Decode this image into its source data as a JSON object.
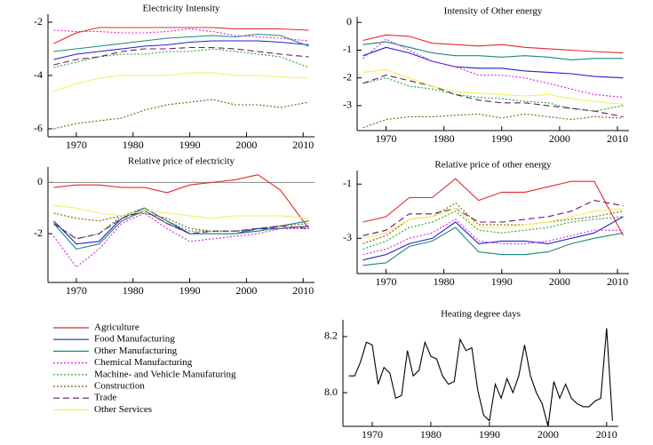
{
  "chart_data": [
    {
      "type": "line",
      "title": "Electricity Intensity",
      "x": [
        1966,
        1970,
        1974,
        1978,
        1982,
        1986,
        1990,
        1994,
        1998,
        2002,
        2006,
        2011
      ],
      "xlim": [
        1965,
        2012
      ],
      "ylim": [
        -6.3,
        -1.7
      ],
      "xticks": [
        1970,
        1980,
        1990,
        2000,
        2010
      ],
      "yticks": [
        -6,
        -4,
        -2
      ],
      "series": [
        {
          "name": "Agriculture",
          "color": "#e8282b",
          "style": "solid",
          "values": [
            -2.8,
            -2.4,
            -2.2,
            -2.2,
            -2.2,
            -2.2,
            -2.2,
            -2.2,
            -2.25,
            -2.25,
            -2.25,
            -2.3
          ]
        },
        {
          "name": "Food Manufacturing",
          "color": "#2323c8",
          "style": "solid",
          "values": [
            -3.4,
            -3.2,
            -3.1,
            -3.0,
            -2.9,
            -2.85,
            -2.75,
            -2.7,
            -2.7,
            -2.7,
            -2.75,
            -2.85
          ]
        },
        {
          "name": "Other Manufacturing",
          "color": "#1a8a7a",
          "style": "solid",
          "values": [
            -3.1,
            -3.0,
            -2.9,
            -2.8,
            -2.7,
            -2.6,
            -2.55,
            -2.5,
            -2.55,
            -2.45,
            -2.5,
            -2.9
          ]
        },
        {
          "name": "Chemical Manufacturing",
          "color": "#e020e0",
          "style": "dotted",
          "values": [
            -2.3,
            -2.35,
            -2.35,
            -2.4,
            -2.4,
            -2.35,
            -2.25,
            -2.35,
            -2.5,
            -2.55,
            -2.6,
            -2.7
          ]
        },
        {
          "name": "Machine- and Vehicle Manufaturing",
          "color": "#22aa22",
          "style": "dotted",
          "values": [
            -3.7,
            -3.5,
            -3.3,
            -3.2,
            -3.2,
            -3.1,
            -3.1,
            -3.0,
            -3.1,
            -3.2,
            -3.3,
            -3.7
          ]
        },
        {
          "name": "Construction",
          "color": "#7a5a10",
          "style": "dotted",
          "values": [
            -6.0,
            -5.8,
            -5.7,
            -5.6,
            -5.3,
            -5.1,
            -5.0,
            -4.9,
            -5.1,
            -5.1,
            -5.2,
            -5.0
          ]
        },
        {
          "name": "Trade",
          "color": "#6a1a6a",
          "style": "dashed",
          "values": [
            -3.6,
            -3.4,
            -3.3,
            -3.1,
            -3.0,
            -3.0,
            -2.95,
            -2.95,
            -3.0,
            -3.1,
            -3.2,
            -3.3
          ]
        },
        {
          "name": "Other Services",
          "color": "#f0f060",
          "style": "solid",
          "values": [
            -4.6,
            -4.3,
            -4.1,
            -4.0,
            -4.0,
            -4.0,
            -3.9,
            -3.9,
            -4.0,
            -4.0,
            -4.05,
            -4.1
          ]
        }
      ]
    },
    {
      "type": "line",
      "title": "Intensity of Other energy",
      "x": [
        1966,
        1970,
        1974,
        1978,
        1982,
        1986,
        1990,
        1994,
        1998,
        2002,
        2006,
        2011
      ],
      "xlim": [
        1965,
        2012
      ],
      "ylim": [
        -3.9,
        0.2
      ],
      "xticks": [
        1970,
        1980,
        1990,
        2000,
        2010
      ],
      "yticks": [
        -3,
        -2,
        -1,
        0
      ],
      "series": [
        {
          "values": [
            -0.65,
            -0.45,
            -0.5,
            -0.75,
            -0.8,
            -0.85,
            -0.8,
            -0.9,
            -0.95,
            -1.0,
            -1.05,
            -1.1
          ]
        },
        {
          "values": [
            -1.2,
            -0.9,
            -1.1,
            -1.4,
            -1.6,
            -1.65,
            -1.65,
            -1.75,
            -1.8,
            -1.85,
            -1.95,
            -2.0
          ]
        },
        {
          "values": [
            -0.8,
            -0.7,
            -0.9,
            -1.1,
            -1.2,
            -1.2,
            -1.25,
            -1.2,
            -1.25,
            -1.35,
            -1.3,
            -1.3
          ]
        },
        {
          "values": [
            -1.3,
            -0.6,
            -1.0,
            -1.4,
            -1.6,
            -1.9,
            -1.9,
            -2.0,
            -2.2,
            -2.4,
            -2.6,
            -2.7
          ]
        },
        {
          "values": [
            -2.2,
            -2.0,
            -2.3,
            -2.4,
            -2.6,
            -2.7,
            -2.75,
            -2.85,
            -2.9,
            -3.1,
            -3.2,
            -3.0
          ]
        },
        {
          "values": [
            -3.8,
            -3.5,
            -3.4,
            -3.4,
            -3.35,
            -3.3,
            -3.45,
            -3.3,
            -3.4,
            -3.5,
            -3.4,
            -3.45
          ]
        },
        {
          "values": [
            -2.2,
            -1.9,
            -2.1,
            -2.3,
            -2.6,
            -2.8,
            -2.9,
            -2.9,
            -3.0,
            -3.1,
            -3.2,
            -3.4
          ]
        },
        {
          "values": [
            -1.8,
            -1.7,
            -2.0,
            -2.3,
            -2.5,
            -2.55,
            -2.6,
            -2.65,
            -2.6,
            -2.75,
            -2.85,
            -2.95
          ]
        }
      ]
    },
    {
      "type": "line",
      "title": "Relative price of electricity",
      "zero_line": true,
      "x": [
        1966,
        1970,
        1974,
        1978,
        1982,
        1986,
        1990,
        1994,
        1998,
        2002,
        2006,
        2011
      ],
      "xlim": [
        1965,
        2012
      ],
      "ylim": [
        -3.9,
        0.6
      ],
      "xticks": [
        1970,
        1980,
        1990,
        2000,
        2010
      ],
      "yticks": [
        -2,
        0
      ],
      "series": [
        {
          "values": [
            -0.2,
            -0.1,
            -0.1,
            -0.2,
            -0.2,
            -0.4,
            -0.1,
            0.0,
            0.1,
            0.3,
            -0.3,
            -1.8
          ]
        },
        {
          "values": [
            -1.5,
            -2.4,
            -2.3,
            -1.4,
            -1.0,
            -1.5,
            -2.0,
            -2.0,
            -2.0,
            -1.8,
            -1.8,
            -1.7
          ]
        },
        {
          "values": [
            -1.6,
            -2.6,
            -2.4,
            -1.5,
            -1.1,
            -1.6,
            -2.0,
            -2.0,
            -2.0,
            -1.9,
            -1.7,
            -1.5
          ]
        },
        {
          "values": [
            -2.1,
            -3.3,
            -2.6,
            -1.6,
            -1.2,
            -1.8,
            -2.3,
            -2.2,
            -2.1,
            -2.0,
            -1.8,
            -1.8
          ]
        },
        {
          "values": [
            -1.6,
            -2.2,
            -2.0,
            -1.3,
            -1.0,
            -1.5,
            -1.9,
            -1.9,
            -1.9,
            -1.9,
            -1.8,
            -1.7
          ]
        },
        {
          "values": [
            -1.2,
            -1.4,
            -1.5,
            -1.3,
            -1.2,
            -1.4,
            -1.8,
            -1.9,
            -1.9,
            -1.8,
            -1.7,
            -1.6
          ]
        },
        {
          "values": [
            -1.6,
            -2.2,
            -2.0,
            -1.4,
            -1.1,
            -1.6,
            -2.0,
            -1.9,
            -1.9,
            -1.8,
            -1.7,
            -1.8
          ]
        },
        {
          "values": [
            -0.9,
            -1.0,
            -1.2,
            -1.3,
            -1.1,
            -1.2,
            -1.3,
            -1.4,
            -1.3,
            -1.3,
            -1.3,
            -1.4
          ]
        }
      ]
    },
    {
      "type": "line",
      "title": "Relative price of other energy",
      "x": [
        1966,
        1970,
        1974,
        1978,
        1982,
        1986,
        1990,
        1994,
        1998,
        2002,
        2006,
        2011
      ],
      "xlim": [
        1965,
        2012
      ],
      "ylim": [
        -4.3,
        -0.5
      ],
      "xticks": [
        1970,
        1980,
        1990,
        2000,
        2010
      ],
      "yticks": [
        -3,
        -1
      ],
      "series": [
        {
          "values": [
            -2.4,
            -2.2,
            -1.5,
            -1.5,
            -0.8,
            -1.6,
            -1.3,
            -1.3,
            -1.1,
            -0.9,
            -0.9,
            -2.9
          ]
        },
        {
          "values": [
            -3.8,
            -3.6,
            -3.2,
            -3.0,
            -2.4,
            -3.2,
            -3.1,
            -3.1,
            -3.2,
            -3.0,
            -2.8,
            -2.2
          ]
        },
        {
          "values": [
            -4.0,
            -3.9,
            -3.3,
            -3.1,
            -2.6,
            -3.5,
            -3.6,
            -3.6,
            -3.5,
            -3.2,
            -3.0,
            -2.8
          ]
        },
        {
          "values": [
            -3.6,
            -3.4,
            -3.0,
            -2.8,
            -2.3,
            -3.1,
            -3.2,
            -3.2,
            -3.1,
            -2.9,
            -2.7,
            -2.7
          ]
        },
        {
          "values": [
            -3.4,
            -3.1,
            -2.6,
            -2.4,
            -2.0,
            -2.7,
            -2.8,
            -2.7,
            -2.6,
            -2.4,
            -2.3,
            -2.2
          ]
        },
        {
          "values": [
            -3.2,
            -2.9,
            -2.3,
            -2.2,
            -1.7,
            -2.5,
            -2.5,
            -2.5,
            -2.4,
            -2.3,
            -2.2,
            -2.0
          ]
        },
        {
          "values": [
            -2.9,
            -2.7,
            -2.1,
            -2.1,
            -1.9,
            -2.4,
            -2.4,
            -2.3,
            -2.2,
            -2.0,
            -1.6,
            -1.8
          ]
        },
        {
          "values": [
            -3.0,
            -2.8,
            -2.3,
            -2.2,
            -1.9,
            -2.6,
            -2.6,
            -2.5,
            -2.4,
            -2.2,
            -2.0,
            -1.9
          ]
        }
      ]
    },
    {
      "type": "line",
      "title": "Heating degree days",
      "x": [
        1966,
        1967,
        1968,
        1969,
        1970,
        1971,
        1972,
        1973,
        1974,
        1975,
        1976,
        1977,
        1978,
        1979,
        1980,
        1981,
        1982,
        1983,
        1984,
        1985,
        1986,
        1987,
        1988,
        1989,
        1990,
        1991,
        1992,
        1993,
        1994,
        1995,
        1996,
        1997,
        1998,
        1999,
        2000,
        2001,
        2002,
        2003,
        2004,
        2005,
        2006,
        2007,
        2008,
        2009,
        2010,
        2011
      ],
      "xlim": [
        1965,
        2012
      ],
      "ylim": [
        7.88,
        8.26
      ],
      "xticks": [
        1970,
        1980,
        1990,
        2000,
        2010
      ],
      "yticks": [
        {
          "value": 8.0,
          "label": "8.0"
        },
        {
          "value": 8.2,
          "label": "8.2"
        }
      ],
      "series": [
        {
          "color": "#000000",
          "values": [
            8.06,
            8.06,
            8.11,
            8.18,
            8.17,
            8.03,
            8.09,
            8.07,
            7.98,
            7.99,
            8.15,
            8.06,
            8.08,
            8.18,
            8.13,
            8.12,
            8.06,
            8.03,
            8.04,
            8.19,
            8.15,
            8.16,
            8.01,
            7.92,
            7.9,
            8.03,
            7.98,
            8.05,
            8.0,
            8.06,
            8.17,
            8.06,
            8.0,
            7.96,
            7.88,
            8.04,
            7.98,
            8.03,
            7.98,
            7.96,
            7.95,
            7.95,
            7.97,
            7.98,
            8.23,
            7.9
          ]
        }
      ]
    }
  ]
}
